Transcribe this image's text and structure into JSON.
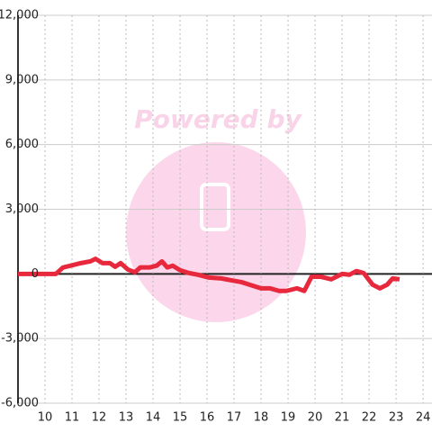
{
  "chart_data": {
    "type": "line",
    "watermark": "Powered by",
    "x": [
      9,
      10.4,
      10.67,
      10.93,
      11.33,
      11.67,
      11.87,
      12.13,
      12.4,
      12.6,
      12.8,
      13.07,
      13.33,
      13.53,
      13.87,
      14.13,
      14.33,
      14.53,
      14.73,
      15,
      15.33,
      15.67,
      16.07,
      16.53,
      16.87,
      17.27,
      17.67,
      18,
      18.33,
      18.67,
      18.93,
      19.33,
      19.6,
      19.87,
      20.2,
      20.6,
      21,
      21.27,
      21.53,
      21.8,
      22.13,
      22.4,
      22.67,
      22.87,
      23.13
    ],
    "series": [
      {
        "color": "#e8283c",
        "values": [
          0,
          0,
          300,
          375,
          500,
          580,
          700,
          500,
          500,
          330,
          500,
          200,
          80,
          300,
          300,
          380,
          580,
          300,
          380,
          170,
          40,
          -40,
          -170,
          -210,
          -290,
          -380,
          -540,
          -670,
          -670,
          -790,
          -790,
          -670,
          -790,
          -130,
          -130,
          -250,
          0,
          -40,
          130,
          40,
          -500,
          -670,
          -500,
          -210,
          -250
        ]
      }
    ],
    "xlim": [
      9,
      24.33
    ],
    "xticks": [
      10,
      11,
      12,
      13,
      14,
      15,
      16,
      17,
      18,
      19,
      20,
      21,
      22,
      23,
      24
    ],
    "ylim": [
      -6000,
      12000
    ],
    "yticks": [
      {
        "value": -6000,
        "label": "-6,000"
      },
      {
        "value": -3000,
        "label": "-3,000"
      },
      0,
      {
        "value": 3000,
        "label": "3,000"
      },
      {
        "value": 6000,
        "label": "6,000"
      },
      {
        "value": 9000,
        "label": "9,000"
      },
      {
        "value": 12000,
        "label": "12,000"
      }
    ],
    "grid": true
  }
}
